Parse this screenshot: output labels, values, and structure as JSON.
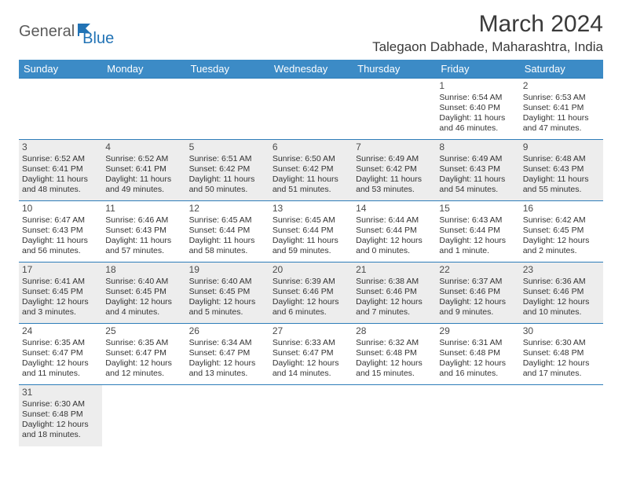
{
  "brand": {
    "part1": "General",
    "part2": "Blue"
  },
  "title": "March 2024",
  "location": "Talegaon Dabhade, Maharashtra, India",
  "colors": {
    "header_bg": "#3c8bc6",
    "header_text": "#ffffff",
    "grid_line": "#2e7db9",
    "shaded_bg": "#ededed",
    "logo_gray": "#5b5b5b",
    "logo_blue": "#2273b5"
  },
  "day_names": [
    "Sunday",
    "Monday",
    "Tuesday",
    "Wednesday",
    "Thursday",
    "Friday",
    "Saturday"
  ],
  "weeks": [
    [
      {
        "blank": true
      },
      {
        "blank": true
      },
      {
        "blank": true
      },
      {
        "blank": true
      },
      {
        "blank": true
      },
      {
        "day": "1",
        "sunrise": "Sunrise: 6:54 AM",
        "sunset": "Sunset: 6:40 PM",
        "daylight1": "Daylight: 11 hours",
        "daylight2": "and 46 minutes."
      },
      {
        "day": "2",
        "sunrise": "Sunrise: 6:53 AM",
        "sunset": "Sunset: 6:41 PM",
        "daylight1": "Daylight: 11 hours",
        "daylight2": "and 47 minutes."
      }
    ],
    [
      {
        "day": "3",
        "shaded": true,
        "sunrise": "Sunrise: 6:52 AM",
        "sunset": "Sunset: 6:41 PM",
        "daylight1": "Daylight: 11 hours",
        "daylight2": "and 48 minutes."
      },
      {
        "day": "4",
        "shaded": true,
        "sunrise": "Sunrise: 6:52 AM",
        "sunset": "Sunset: 6:41 PM",
        "daylight1": "Daylight: 11 hours",
        "daylight2": "and 49 minutes."
      },
      {
        "day": "5",
        "shaded": true,
        "sunrise": "Sunrise: 6:51 AM",
        "sunset": "Sunset: 6:42 PM",
        "daylight1": "Daylight: 11 hours",
        "daylight2": "and 50 minutes."
      },
      {
        "day": "6",
        "shaded": true,
        "sunrise": "Sunrise: 6:50 AM",
        "sunset": "Sunset: 6:42 PM",
        "daylight1": "Daylight: 11 hours",
        "daylight2": "and 51 minutes."
      },
      {
        "day": "7",
        "shaded": true,
        "sunrise": "Sunrise: 6:49 AM",
        "sunset": "Sunset: 6:42 PM",
        "daylight1": "Daylight: 11 hours",
        "daylight2": "and 53 minutes."
      },
      {
        "day": "8",
        "shaded": true,
        "sunrise": "Sunrise: 6:49 AM",
        "sunset": "Sunset: 6:43 PM",
        "daylight1": "Daylight: 11 hours",
        "daylight2": "and 54 minutes."
      },
      {
        "day": "9",
        "shaded": true,
        "sunrise": "Sunrise: 6:48 AM",
        "sunset": "Sunset: 6:43 PM",
        "daylight1": "Daylight: 11 hours",
        "daylight2": "and 55 minutes."
      }
    ],
    [
      {
        "day": "10",
        "sunrise": "Sunrise: 6:47 AM",
        "sunset": "Sunset: 6:43 PM",
        "daylight1": "Daylight: 11 hours",
        "daylight2": "and 56 minutes."
      },
      {
        "day": "11",
        "sunrise": "Sunrise: 6:46 AM",
        "sunset": "Sunset: 6:43 PM",
        "daylight1": "Daylight: 11 hours",
        "daylight2": "and 57 minutes."
      },
      {
        "day": "12",
        "sunrise": "Sunrise: 6:45 AM",
        "sunset": "Sunset: 6:44 PM",
        "daylight1": "Daylight: 11 hours",
        "daylight2": "and 58 minutes."
      },
      {
        "day": "13",
        "sunrise": "Sunrise: 6:45 AM",
        "sunset": "Sunset: 6:44 PM",
        "daylight1": "Daylight: 11 hours",
        "daylight2": "and 59 minutes."
      },
      {
        "day": "14",
        "sunrise": "Sunrise: 6:44 AM",
        "sunset": "Sunset: 6:44 PM",
        "daylight1": "Daylight: 12 hours",
        "daylight2": "and 0 minutes."
      },
      {
        "day": "15",
        "sunrise": "Sunrise: 6:43 AM",
        "sunset": "Sunset: 6:44 PM",
        "daylight1": "Daylight: 12 hours",
        "daylight2": "and 1 minute."
      },
      {
        "day": "16",
        "sunrise": "Sunrise: 6:42 AM",
        "sunset": "Sunset: 6:45 PM",
        "daylight1": "Daylight: 12 hours",
        "daylight2": "and 2 minutes."
      }
    ],
    [
      {
        "day": "17",
        "shaded": true,
        "sunrise": "Sunrise: 6:41 AM",
        "sunset": "Sunset: 6:45 PM",
        "daylight1": "Daylight: 12 hours",
        "daylight2": "and 3 minutes."
      },
      {
        "day": "18",
        "shaded": true,
        "sunrise": "Sunrise: 6:40 AM",
        "sunset": "Sunset: 6:45 PM",
        "daylight1": "Daylight: 12 hours",
        "daylight2": "and 4 minutes."
      },
      {
        "day": "19",
        "shaded": true,
        "sunrise": "Sunrise: 6:40 AM",
        "sunset": "Sunset: 6:45 PM",
        "daylight1": "Daylight: 12 hours",
        "daylight2": "and 5 minutes."
      },
      {
        "day": "20",
        "shaded": true,
        "sunrise": "Sunrise: 6:39 AM",
        "sunset": "Sunset: 6:46 PM",
        "daylight1": "Daylight: 12 hours",
        "daylight2": "and 6 minutes."
      },
      {
        "day": "21",
        "shaded": true,
        "sunrise": "Sunrise: 6:38 AM",
        "sunset": "Sunset: 6:46 PM",
        "daylight1": "Daylight: 12 hours",
        "daylight2": "and 7 minutes."
      },
      {
        "day": "22",
        "shaded": true,
        "sunrise": "Sunrise: 6:37 AM",
        "sunset": "Sunset: 6:46 PM",
        "daylight1": "Daylight: 12 hours",
        "daylight2": "and 9 minutes."
      },
      {
        "day": "23",
        "shaded": true,
        "sunrise": "Sunrise: 6:36 AM",
        "sunset": "Sunset: 6:46 PM",
        "daylight1": "Daylight: 12 hours",
        "daylight2": "and 10 minutes."
      }
    ],
    [
      {
        "day": "24",
        "sunrise": "Sunrise: 6:35 AM",
        "sunset": "Sunset: 6:47 PM",
        "daylight1": "Daylight: 12 hours",
        "daylight2": "and 11 minutes."
      },
      {
        "day": "25",
        "sunrise": "Sunrise: 6:35 AM",
        "sunset": "Sunset: 6:47 PM",
        "daylight1": "Daylight: 12 hours",
        "daylight2": "and 12 minutes."
      },
      {
        "day": "26",
        "sunrise": "Sunrise: 6:34 AM",
        "sunset": "Sunset: 6:47 PM",
        "daylight1": "Daylight: 12 hours",
        "daylight2": "and 13 minutes."
      },
      {
        "day": "27",
        "sunrise": "Sunrise: 6:33 AM",
        "sunset": "Sunset: 6:47 PM",
        "daylight1": "Daylight: 12 hours",
        "daylight2": "and 14 minutes."
      },
      {
        "day": "28",
        "sunrise": "Sunrise: 6:32 AM",
        "sunset": "Sunset: 6:48 PM",
        "daylight1": "Daylight: 12 hours",
        "daylight2": "and 15 minutes."
      },
      {
        "day": "29",
        "sunrise": "Sunrise: 6:31 AM",
        "sunset": "Sunset: 6:48 PM",
        "daylight1": "Daylight: 12 hours",
        "daylight2": "and 16 minutes."
      },
      {
        "day": "30",
        "sunrise": "Sunrise: 6:30 AM",
        "sunset": "Sunset: 6:48 PM",
        "daylight1": "Daylight: 12 hours",
        "daylight2": "and 17 minutes."
      }
    ],
    [
      {
        "day": "31",
        "shaded": true,
        "sunrise": "Sunrise: 6:30 AM",
        "sunset": "Sunset: 6:48 PM",
        "daylight1": "Daylight: 12 hours",
        "daylight2": "and 18 minutes."
      },
      {
        "blank": true,
        "noborder": true
      },
      {
        "blank": true,
        "noborder": true
      },
      {
        "blank": true,
        "noborder": true
      },
      {
        "blank": true,
        "noborder": true
      },
      {
        "blank": true,
        "noborder": true
      },
      {
        "blank": true,
        "noborder": true
      }
    ]
  ]
}
